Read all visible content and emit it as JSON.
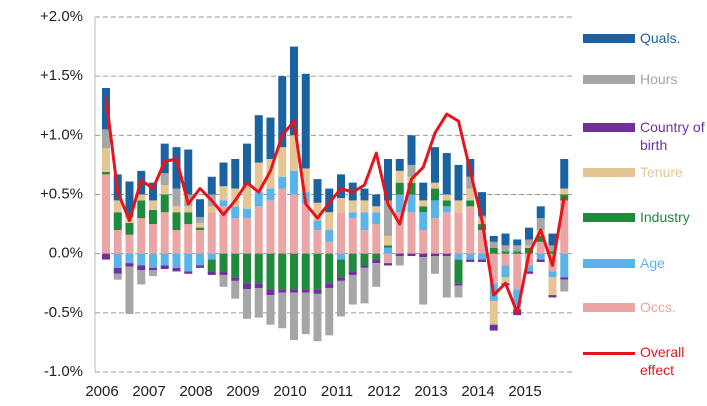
{
  "chart_data": {
    "type": "bar",
    "stacked": true,
    "categories": [
      "2006",
      null,
      null,
      null,
      "2007",
      null,
      null,
      null,
      "2008",
      null,
      null,
      null,
      "2009",
      null,
      null,
      null,
      "2010",
      null,
      null,
      null,
      "2011",
      null,
      null,
      null,
      "2012",
      null,
      null,
      null,
      "2013",
      null,
      null,
      null,
      "2014",
      null,
      null,
      null,
      "2015",
      null,
      null,
      null
    ],
    "ylim": [
      -1.0,
      2.0
    ],
    "yticks": [
      {
        "value": -1.0,
        "label": "-1.0%"
      },
      {
        "value": -0.5,
        "label": "-0.5%"
      },
      {
        "value": 0.0,
        "label": "0.0%"
      },
      {
        "value": 0.5,
        "label": "+0.5%"
      },
      {
        "value": 1.0,
        "label": "+1.0%"
      },
      {
        "value": 1.5,
        "label": "+1.5%"
      },
      {
        "value": 2.0,
        "label": "+2.0%"
      }
    ],
    "grid": true,
    "series": [
      {
        "name": "Quals.",
        "color": "#1a62a0",
        "values": [
          0.35,
          0.22,
          0.3,
          0.2,
          0.15,
          0.25,
          0.35,
          0.38,
          0.15,
          0.15,
          0.2,
          0.25,
          0.35,
          0.4,
          0.35,
          0.6,
          0.75,
          0.8,
          0.2,
          0.2,
          0.2,
          0.15,
          0.1,
          0.1,
          0.35,
          0.1,
          0.25,
          0.15,
          0.3,
          0.35,
          0.3,
          0.15,
          0.2,
          0.05,
          0.1,
          0.05,
          0.1,
          0.1,
          0.1,
          0.25
        ]
      },
      {
        "name": "Hours",
        "color": "#a6a6a6",
        "values": [
          0.16,
          -0.05,
          -0.4,
          -0.12,
          -0.05,
          0.1,
          0.15,
          0.1,
          0.05,
          0.1,
          -0.1,
          -0.15,
          -0.25,
          -0.25,
          -0.25,
          -0.3,
          -0.4,
          -0.35,
          -0.4,
          -0.4,
          -0.3,
          -0.25,
          -0.3,
          -0.2,
          0.3,
          -0.08,
          0.1,
          -0.4,
          -0.15,
          -0.35,
          -0.1,
          0.1,
          0.02,
          0.05,
          0.05,
          0.05,
          0.05,
          0.1,
          0.05,
          -0.1
        ]
      },
      {
        "name": "Country of birth",
        "color": "#7030a0",
        "values": [
          -0.05,
          -0.05,
          -0.03,
          -0.04,
          -0.02,
          -0.03,
          -0.03,
          -0.02,
          -0.02,
          -0.03,
          -0.03,
          -0.03,
          -0.05,
          -0.04,
          -0.05,
          -0.03,
          -0.03,
          -0.03,
          -0.04,
          -0.04,
          -0.03,
          -0.03,
          -0.02,
          -0.03,
          -0.02,
          -0.02,
          -0.02,
          -0.03,
          -0.02,
          -0.02,
          -0.02,
          -0.02,
          -0.02,
          -0.05,
          -0.02,
          -0.05,
          -0.02,
          -0.02,
          -0.02,
          -0.02
        ]
      },
      {
        "name": "Tenure",
        "color": "#e6c594",
        "values": [
          0.2,
          0.1,
          0.05,
          0.05,
          0.08,
          0.08,
          0.05,
          0.05,
          0.04,
          0.05,
          0.12,
          0.15,
          0.2,
          0.25,
          0.25,
          0.25,
          0.3,
          0.2,
          0.15,
          0.15,
          0.12,
          0.1,
          0.1,
          0.05,
          0.08,
          0.1,
          0.05,
          0.05,
          0.05,
          0.05,
          0.1,
          0.1,
          0.05,
          -0.2,
          -0.05,
          -0.02,
          0.02,
          0.05,
          -0.15,
          0.05
        ]
      },
      {
        "name": "Industry",
        "color": "#1f8a3c",
        "values": [
          0.02,
          0.15,
          0.1,
          0.15,
          0.12,
          0.15,
          0.15,
          0.1,
          0.02,
          -0.1,
          -0.15,
          -0.2,
          -0.25,
          -0.25,
          -0.3,
          -0.3,
          -0.3,
          -0.3,
          -0.3,
          -0.25,
          -0.15,
          -0.15,
          -0.1,
          -0.05,
          0.02,
          0.1,
          0.1,
          0.05,
          0.1,
          0.05,
          -0.2,
          0.05,
          0.05,
          0.05,
          0.02,
          0.02,
          0.05,
          0.05,
          0.02,
          0.05
        ]
      },
      {
        "name": "Age",
        "color": "#5bb4e8",
        "values": [
          0.0,
          -0.12,
          -0.08,
          -0.1,
          -0.12,
          -0.1,
          -0.12,
          -0.15,
          -0.1,
          -0.05,
          0.05,
          0.1,
          0.08,
          0.12,
          0.1,
          0.1,
          0.2,
          0.1,
          0.08,
          0.1,
          -0.05,
          0.05,
          0.15,
          0.1,
          0.05,
          0.15,
          0.15,
          0.15,
          0.15,
          0.05,
          -0.05,
          -0.05,
          -0.05,
          -0.15,
          -0.1,
          -0.15,
          -0.05,
          -0.05,
          -0.05,
          -0.2
        ]
      },
      {
        "name": "Occs.",
        "color": "#eba5a5",
        "values": [
          0.67,
          0.2,
          0.16,
          0.3,
          0.25,
          0.35,
          0.2,
          0.25,
          0.2,
          0.35,
          0.4,
          0.3,
          0.3,
          0.4,
          0.45,
          0.55,
          0.5,
          0.42,
          0.2,
          0.1,
          0.35,
          0.3,
          0.2,
          0.25,
          -0.08,
          0.35,
          0.35,
          0.2,
          0.3,
          0.35,
          0.35,
          0.4,
          0.2,
          -0.25,
          -0.1,
          -0.3,
          -0.1,
          0.1,
          -0.15,
          0.45
        ]
      },
      {
        "name": "Overall effect",
        "type": "line",
        "color": "#e8141c",
        "values": [
          1.32,
          0.52,
          0.28,
          0.62,
          0.55,
          0.78,
          0.8,
          0.42,
          0.55,
          0.45,
          0.33,
          0.45,
          0.6,
          0.52,
          0.7,
          1.0,
          1.12,
          0.42,
          0.3,
          0.43,
          0.55,
          0.52,
          0.58,
          0.85,
          0.42,
          0.25,
          0.63,
          0.73,
          1.02,
          1.18,
          1.12,
          0.7,
          0.28,
          -0.35,
          -0.25,
          -0.5,
          0.0,
          0.2,
          -0.1,
          0.48
        ]
      }
    ]
  }
}
